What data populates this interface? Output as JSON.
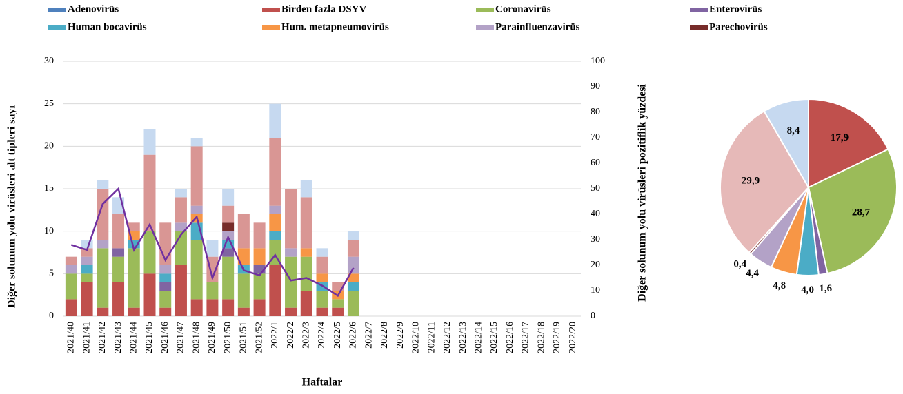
{
  "chart_data": [
    {
      "type": "bar",
      "stacked": true,
      "grid": true,
      "xlabel": "Haftalar",
      "ylabel": "Diğer solunum yolu virüsleri alt tipleri sayı",
      "y2label": "Diğer solunum yolu virüsleri pozitiflik yüzdesi",
      "categories": [
        "2021/40",
        "2021/41",
        "2021/42",
        "2021/43",
        "2021/44",
        "2021/45",
        "2021/46",
        "2021/47",
        "2021/48",
        "2021/49",
        "2021/50",
        "2021/51",
        "2021/52",
        "2022/1",
        "2022/2",
        "2022/3",
        "2022/4",
        "2022/5",
        "2022/6",
        "2022/7",
        "2022/8",
        "2022/9",
        "2022/10",
        "2022/11",
        "2022/12",
        "2022/13",
        "2022/14",
        "2022/15",
        "2022/16",
        "2022/17",
        "2022/18",
        "2022/19",
        "2022/20"
      ],
      "ylim": [
        0,
        30
      ],
      "yticks": [
        0,
        5,
        10,
        15,
        20,
        25,
        30
      ],
      "y2lim": [
        0,
        100
      ],
      "y2ticks": [
        0,
        10,
        20,
        30,
        40,
        50,
        60,
        70,
        80,
        90,
        100
      ],
      "series": [
        {
          "name": "Adenovirüs",
          "color": "#4f81bd",
          "values": [
            0,
            0,
            0,
            0,
            0,
            0,
            0,
            0,
            0,
            0,
            0,
            0,
            0,
            0,
            0,
            0,
            0,
            0,
            0,
            null,
            null,
            null,
            null,
            null,
            null,
            null,
            null,
            null,
            null,
            null,
            null,
            null,
            null
          ]
        },
        {
          "name": "Birden fazla DSYV",
          "color": "#c0504d",
          "values": [
            2,
            4,
            1,
            4,
            1,
            5,
            1,
            6,
            2,
            2,
            2,
            1,
            2,
            6,
            1,
            3,
            1,
            1,
            0,
            null,
            null,
            null,
            null,
            null,
            null,
            null,
            null,
            null,
            null,
            null,
            null,
            null,
            null
          ]
        },
        {
          "name": "Coronavirüs",
          "color": "#9bbb59",
          "values": [
            3,
            1,
            7,
            3,
            7,
            5,
            2,
            4,
            7,
            2,
            5,
            4,
            3,
            3,
            6,
            4,
            2,
            1,
            3,
            null,
            null,
            null,
            null,
            null,
            null,
            null,
            null,
            null,
            null,
            null,
            null,
            null,
            null
          ]
        },
        {
          "name": "Enterovirüs",
          "color": "#8064a2",
          "values": [
            0,
            0,
            0,
            1,
            0,
            0,
            1,
            0,
            0,
            0,
            1,
            0,
            1,
            0,
            0,
            0,
            0,
            0,
            0,
            null,
            null,
            null,
            null,
            null,
            null,
            null,
            null,
            null,
            null,
            null,
            null,
            null,
            null
          ]
        },
        {
          "name": "Human bocavirüs",
          "color": "#4bacc6",
          "values": [
            0,
            1,
            0,
            0,
            1,
            0,
            1,
            0,
            2,
            0,
            1,
            1,
            0,
            1,
            0,
            0,
            1,
            0,
            1,
            null,
            null,
            null,
            null,
            null,
            null,
            null,
            null,
            null,
            null,
            null,
            null,
            null,
            null
          ]
        },
        {
          "name": "Hum. metapneumovirüs",
          "color": "#f79646",
          "values": [
            0,
            0,
            0,
            0,
            1,
            0,
            0,
            0,
            1,
            0,
            0,
            2,
            2,
            2,
            0,
            1,
            1,
            1,
            1,
            null,
            null,
            null,
            null,
            null,
            null,
            null,
            null,
            null,
            null,
            null,
            null,
            null,
            null
          ]
        },
        {
          "name": "Parainfluenzavirüs",
          "color": "#b3a2c7",
          "values": [
            1,
            1,
            1,
            0,
            0,
            0,
            1,
            1,
            1,
            0,
            1,
            0,
            0,
            1,
            1,
            0,
            0,
            0,
            2,
            null,
            null,
            null,
            null,
            null,
            null,
            null,
            null,
            null,
            null,
            null,
            null,
            null,
            null
          ]
        },
        {
          "name": "Parechovirüs",
          "color": "#772c2a",
          "values": [
            0,
            0,
            0,
            0,
            0,
            0,
            0,
            0,
            0,
            0,
            1,
            0,
            0,
            0,
            0,
            0,
            0,
            0,
            0,
            null,
            null,
            null,
            null,
            null,
            null,
            null,
            null,
            null,
            null,
            null,
            null,
            null,
            null
          ]
        },
        {
          "color": "#d99694",
          "values": [
            1,
            1,
            6,
            4,
            1,
            9,
            5,
            3,
            7,
            3,
            2,
            4,
            3,
            8,
            7,
            6,
            2,
            1,
            2,
            null,
            null,
            null,
            null,
            null,
            null,
            null,
            null,
            null,
            null,
            null,
            null,
            null,
            null
          ]
        },
        {
          "color": "#c6d9f0",
          "values": [
            0,
            1,
            1,
            2,
            0,
            3,
            0,
            1,
            1,
            2,
            2,
            0,
            0,
            4,
            0,
            2,
            1,
            0,
            1,
            null,
            null,
            null,
            null,
            null,
            null,
            null,
            null,
            null,
            null,
            null,
            null,
            null,
            null
          ]
        },
        {
          "type": "line",
          "axis": "y2",
          "color": "#7030a0",
          "values": [
            28,
            26,
            44,
            50,
            26,
            36,
            22,
            32,
            39,
            15,
            31,
            18,
            16,
            24,
            14,
            15,
            12,
            8,
            19,
            null,
            null,
            null,
            null,
            null,
            null,
            null,
            null,
            null,
            null,
            null,
            null,
            null,
            null
          ]
        }
      ]
    },
    {
      "type": "pie",
      "values": [
        17.9,
        28.7,
        1.6,
        4.0,
        4.8,
        4.4,
        0.4,
        29.9,
        8.4
      ],
      "value_labels": [
        "17,9",
        "28,7",
        "1,6",
        "4,0",
        "4,8",
        "4,4",
        "0,4",
        "29,9",
        "8,4"
      ],
      "colors": [
        "#c0504d",
        "#9bbb59",
        "#8064a2",
        "#4bacc6",
        "#f79646",
        "#b3a2c7",
        "#772c2a",
        "#e6b9b8",
        "#c6d9f0"
      ]
    }
  ]
}
